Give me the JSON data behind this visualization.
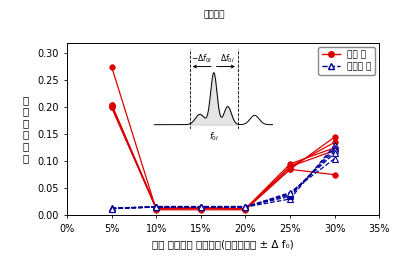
{
  "x_values": [
    5,
    10,
    15,
    20,
    25,
    30
  ],
  "x_ticks": [
    0,
    5,
    10,
    15,
    20,
    25,
    30,
    35
  ],
  "x_tick_labels": [
    "0%",
    "5%",
    "10%",
    "15%",
    "20%",
    "25%",
    "30%",
    "35%"
  ],
  "ylim": [
    0,
    0.32
  ],
  "yticks": [
    0.0,
    0.05,
    0.1,
    0.15,
    0.2,
    0.25,
    0.3
  ],
  "red_series": [
    [
      0.275,
      0.01,
      0.01,
      0.01,
      0.085,
      0.145
    ],
    [
      0.205,
      0.012,
      0.013,
      0.012,
      0.09,
      0.135
    ],
    [
      0.205,
      0.013,
      0.013,
      0.012,
      0.095,
      0.125
    ],
    [
      0.2,
      0.013,
      0.013,
      0.012,
      0.09,
      0.12
    ],
    [
      0.2,
      0.012,
      0.013,
      0.012,
      0.085,
      0.075
    ]
  ],
  "blue_series": [
    [
      0.013,
      0.015,
      0.015,
      0.015,
      0.03,
      0.13
    ],
    [
      0.013,
      0.016,
      0.016,
      0.016,
      0.035,
      0.125
    ],
    [
      0.012,
      0.016,
      0.016,
      0.016,
      0.038,
      0.12
    ],
    [
      0.012,
      0.015,
      0.015,
      0.015,
      0.04,
      0.115
    ],
    [
      0.012,
      0.015,
      0.015,
      0.015,
      0.042,
      0.105
    ]
  ],
  "red_color": "#dd0000",
  "blue_color": "#000099",
  "xlabel": "탁월 진동수의 탐색범위(고유진동수 ± Δ f₀)",
  "ylabel_chars": [
    "산",
    "적",
    "변",
    "동",
    "계",
    "수"
  ],
  "legend_red": "증수 시",
  "legend_blue": "저수위 시",
  "inset_title": "탐색범위",
  "tick_fontsize": 7,
  "label_fontsize": 7.5
}
